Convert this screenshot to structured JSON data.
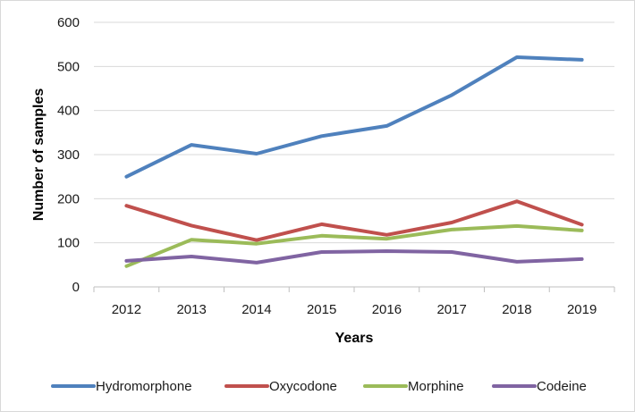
{
  "chart_data": {
    "type": "line",
    "title": "",
    "xlabel": "Years",
    "ylabel": "Number of samples",
    "categories": [
      "2012",
      "2013",
      "2014",
      "2015",
      "2016",
      "2017",
      "2018",
      "2019"
    ],
    "ylim": [
      0,
      600
    ],
    "yticks": [
      0,
      100,
      200,
      300,
      400,
      500,
      600
    ],
    "grid": true,
    "legend_position": "bottom",
    "series": [
      {
        "name": "Hydromorphone",
        "color": "#4f81bd",
        "values": [
          250,
          322,
          302,
          342,
          365,
          435,
          521,
          515
        ]
      },
      {
        "name": "Oxycodone",
        "color": "#c0504d",
        "values": [
          184,
          139,
          106,
          142,
          118,
          146,
          194,
          141
        ]
      },
      {
        "name": "Morphine",
        "color": "#9bbb59",
        "values": [
          47,
          107,
          98,
          116,
          109,
          130,
          138,
          128
        ]
      },
      {
        "name": "Codeine",
        "color": "#8064a2",
        "values": [
          59,
          69,
          55,
          79,
          81,
          79,
          57,
          63
        ]
      }
    ]
  }
}
